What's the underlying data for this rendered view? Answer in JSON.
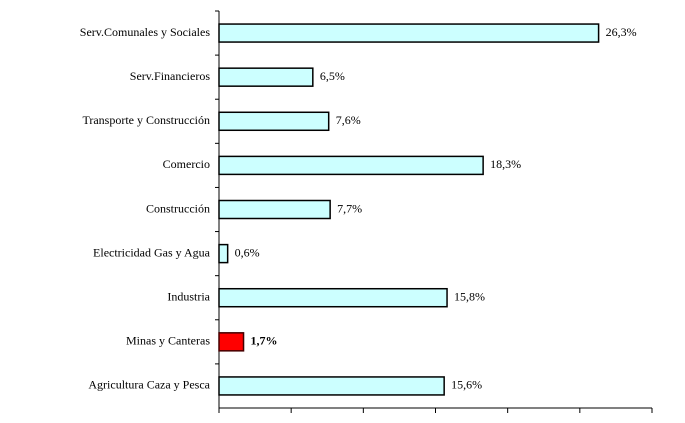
{
  "chart_data": {
    "type": "bar",
    "categories": [
      "Serv.Comunales y Sociales",
      "Serv.Financieros",
      "Transporte y Construcción",
      "Comercio",
      "Construcción",
      "Electricidad Gas y Agua",
      "Industria",
      "Minas y Canteras",
      "Agricultura Caza y Pesca"
    ],
    "values": [
      26.3,
      6.5,
      7.6,
      18.3,
      7.7,
      0.6,
      15.8,
      1.7,
      15.6
    ],
    "value_labels": [
      "26,3%",
      "6,5%",
      "7,6%",
      "18,3%",
      "7,7%",
      "0,6%",
      "15,8%",
      "1,7%",
      "15,6%"
    ],
    "color": "#ccffff",
    "colors": [
      "#ccffff",
      "#ccffff",
      "#ccffff",
      "#ccffff",
      "#ccffff",
      "#ccffff",
      "#ccffff",
      "#ff0000",
      "#ccffff"
    ],
    "xlim": [
      0,
      30
    ],
    "xticks": [
      0,
      5,
      10,
      15,
      20,
      25,
      30
    ]
  }
}
